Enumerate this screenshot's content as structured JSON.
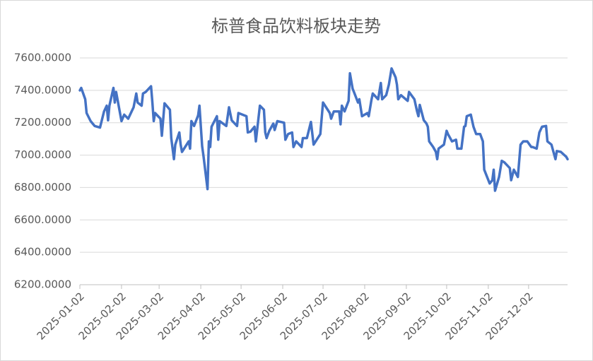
{
  "chart_data": {
    "type": "line",
    "title": "标普食品饮料板块走势",
    "color": "#4472c4",
    "grid": true,
    "xlim": [
      "2025-01-02",
      "2025-12-31"
    ],
    "xticks": [
      "2025-01-02",
      "2025-02-02",
      "2025-03-02",
      "2025-04-02",
      "2025-05-02",
      "2025-06-02",
      "2025-07-02",
      "2025-08-02",
      "2025-09-02",
      "2025-10-02",
      "2025-11-02",
      "2025-12-02"
    ],
    "ylim": [
      6200,
      7600
    ],
    "yticks": [
      {
        "value": 6200,
        "label": "6200.0000"
      },
      {
        "value": 6400,
        "label": "6400.0000"
      },
      {
        "value": 6600,
        "label": "6600.0000"
      },
      {
        "value": 6800,
        "label": "6800.0000"
      },
      {
        "value": 7000,
        "label": "7000.0000"
      },
      {
        "value": 7200,
        "label": "7200.0000"
      },
      {
        "value": 7400,
        "label": "7400.0000"
      },
      {
        "value": 7600,
        "label": "7600.0000"
      }
    ],
    "x": [
      "2025-01-02",
      "2025-01-03",
      "2025-01-06",
      "2025-01-07",
      "2025-01-10",
      "2025-01-13",
      "2025-01-17",
      "2025-01-20",
      "2025-01-22",
      "2025-01-23",
      "2025-01-24",
      "2025-01-27",
      "2025-01-28",
      "2025-01-29",
      "2025-02-02",
      "2025-02-04",
      "2025-02-07",
      "2025-02-11",
      "2025-02-13",
      "2025-02-14",
      "2025-02-17",
      "2025-02-18",
      "2025-02-20",
      "2025-02-24",
      "2025-02-25",
      "2025-02-26",
      "2025-02-27",
      "2025-03-03",
      "2025-03-04",
      "2025-03-06",
      "2025-03-10",
      "2025-03-11",
      "2025-03-13",
      "2025-03-14",
      "2025-03-17",
      "2025-03-18",
      "2025-03-19",
      "2025-03-24",
      "2025-03-25",
      "2025-03-26",
      "2025-03-28",
      "2025-03-31",
      "2025-04-01",
      "2025-04-03",
      "2025-04-04",
      "2025-04-07",
      "2025-04-08",
      "2025-04-09",
      "2025-04-10",
      "2025-04-14",
      "2025-04-15",
      "2025-04-16",
      "2025-04-21",
      "2025-04-23",
      "2025-04-25",
      "2025-04-29",
      "2025-04-30",
      "2025-05-06",
      "2025-05-07",
      "2025-05-09",
      "2025-05-12",
      "2025-05-13",
      "2025-05-16",
      "2025-05-19",
      "2025-05-20",
      "2025-05-21",
      "2025-05-23",
      "2025-05-26",
      "2025-05-27",
      "2025-05-29",
      "2025-06-03",
      "2025-06-04",
      "2025-06-06",
      "2025-06-09",
      "2025-06-10",
      "2025-06-12",
      "2025-06-16",
      "2025-06-17",
      "2025-06-20",
      "2025-06-23",
      "2025-06-25",
      "2025-06-30",
      "2025-07-02",
      "2025-07-07",
      "2025-07-08",
      "2025-07-10",
      "2025-07-14",
      "2025-07-15",
      "2025-07-16",
      "2025-07-18",
      "2025-07-21",
      "2025-07-22",
      "2025-07-24",
      "2025-07-25",
      "2025-07-28",
      "2025-07-29",
      "2025-07-31",
      "2025-08-04",
      "2025-08-05",
      "2025-08-07",
      "2025-08-08",
      "2025-08-12",
      "2025-08-14",
      "2025-08-15",
      "2025-08-18",
      "2025-08-20",
      "2025-08-22",
      "2025-08-25",
      "2025-08-26",
      "2025-08-27",
      "2025-08-29",
      "2025-09-03",
      "2025-09-04",
      "2025-09-08",
      "2025-09-10",
      "2025-09-11",
      "2025-09-12",
      "2025-09-15",
      "2025-09-17",
      "2025-09-18",
      "2025-09-19",
      "2025-09-22",
      "2025-09-24",
      "2025-09-25",
      "2025-09-26",
      "2025-09-30",
      "2025-10-02",
      "2025-10-03",
      "2025-10-06",
      "2025-10-09",
      "2025-10-10",
      "2025-10-13",
      "2025-10-15",
      "2025-10-16",
      "2025-10-17",
      "2025-10-20",
      "2025-10-22",
      "2025-10-24",
      "2025-10-27",
      "2025-10-29",
      "2025-10-30",
      "2025-11-03",
      "2025-11-05",
      "2025-11-06",
      "2025-11-07",
      "2025-11-10",
      "2025-11-12",
      "2025-11-14",
      "2025-11-18",
      "2025-11-19",
      "2025-11-21",
      "2025-11-24",
      "2025-11-26",
      "2025-11-28",
      "2025-12-01",
      "2025-12-04",
      "2025-12-05",
      "2025-12-08",
      "2025-12-10",
      "2025-12-12",
      "2025-12-15",
      "2025-12-16",
      "2025-12-19",
      "2025-12-22",
      "2025-12-23",
      "2025-12-26",
      "2025-12-30",
      "2025-12-31"
    ],
    "values": [
      7400,
      7415,
      7345,
      7260,
      7210,
      7180,
      7170,
      7270,
      7305,
      7215,
      7305,
      7415,
      7325,
      7390,
      7210,
      7250,
      7225,
      7295,
      7380,
      7325,
      7305,
      7380,
      7390,
      7425,
      7325,
      7210,
      7260,
      7225,
      7120,
      7320,
      7280,
      7105,
      6975,
      7065,
      7140,
      7065,
      7020,
      7085,
      7040,
      7210,
      7180,
      7245,
      7305,
      7055,
      6995,
      6790,
      7085,
      7050,
      7175,
      7240,
      7095,
      7210,
      7180,
      7295,
      7215,
      7180,
      7260,
      7240,
      7140,
      7145,
      7175,
      7085,
      7305,
      7280,
      7140,
      7105,
      7150,
      7195,
      7155,
      7210,
      7200,
      7095,
      7130,
      7140,
      7050,
      7085,
      7050,
      7105,
      7105,
      7205,
      7065,
      7130,
      7325,
      7260,
      7225,
      7270,
      7270,
      7190,
      7305,
      7270,
      7335,
      7505,
      7410,
      7390,
      7325,
      7345,
      7240,
      7260,
      7240,
      7340,
      7380,
      7345,
      7445,
      7345,
      7370,
      7435,
      7535,
      7480,
      7435,
      7345,
      7370,
      7335,
      7390,
      7345,
      7270,
      7240,
      7310,
      7215,
      7195,
      7175,
      7085,
      7050,
      7020,
      6975,
      7040,
      7065,
      7150,
      7130,
      7085,
      7095,
      7040,
      7040,
      7175,
      7180,
      7240,
      7250,
      7175,
      7130,
      7130,
      7085,
      6910,
      6825,
      6845,
      6910,
      6780,
      6865,
      6965,
      6955,
      6920,
      6845,
      6910,
      6865,
      7065,
      7085,
      7085,
      7050,
      7050,
      7040,
      7140,
      7175,
      7180,
      7085,
      7065,
      6975,
      7025,
      7020,
      6990,
      6975
    ]
  }
}
